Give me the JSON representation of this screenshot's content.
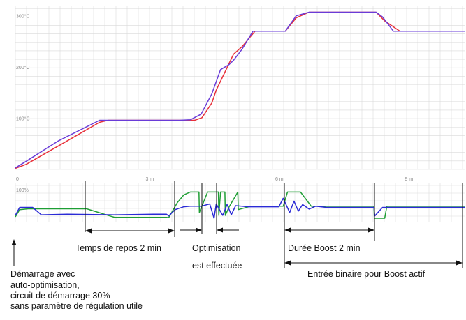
{
  "chart_data": [
    {
      "type": "line",
      "title": "",
      "xlabel": "",
      "ylabel": "",
      "x_unit": "min",
      "xlim": [
        0,
        10.4
      ],
      "ylim": [
        0,
        320
      ],
      "y_tick_labels": [
        {
          "value": 300,
          "label": "300°C"
        },
        {
          "value": 200,
          "label": "200°C"
        },
        {
          "value": 100,
          "label": "100°C"
        }
      ],
      "grid": true,
      "series": [
        {
          "color": "#e8303a",
          "x": [
            0,
            0.25,
            1.0,
            1.95,
            2.15,
            3.2,
            3.8,
            4.15,
            4.32,
            4.55,
            4.65,
            4.85,
            5.05,
            5.25,
            5.55,
            6.25,
            6.5,
            6.8,
            8.35,
            8.55,
            8.9,
            10.4
          ],
          "y": [
            2,
            10,
            46,
            92,
            96,
            96,
            96,
            96,
            101,
            130,
            155,
            190,
            225,
            240,
            270,
            270,
            296,
            307,
            307,
            290,
            270,
            270
          ]
        },
        {
          "color": "#6a3cd8",
          "x": [
            0,
            0.25,
            1.0,
            1.95,
            2.15,
            3.2,
            3.8,
            4.05,
            4.3,
            4.55,
            4.75,
            4.95,
            5.05,
            5.25,
            5.5,
            6.25,
            6.5,
            6.8,
            8.35,
            8.5,
            8.75,
            10.4
          ],
          "y": [
            3,
            16,
            56,
            96,
            96,
            96,
            96,
            97,
            108,
            148,
            195,
            205,
            213,
            235,
            270,
            270,
            300,
            307,
            307,
            298,
            270,
            270
          ]
        }
      ],
      "x_ticks": [
        {
          "value": 0,
          "label": "0"
        },
        {
          "value": 3,
          "label": "3  m"
        },
        {
          "value": 6,
          "label": "6  m"
        },
        {
          "value": 9,
          "label": "9  m"
        }
      ]
    },
    {
      "type": "line",
      "title": "",
      "xlabel": "",
      "ylabel": "",
      "x_unit": "min",
      "xlim": [
        0,
        10.4
      ],
      "ylim": [
        0,
        110
      ],
      "y_tick_labels": [
        {
          "value": 100,
          "label": "100%"
        }
      ],
      "grid": true,
      "series": [
        {
          "color": "#1e9e34",
          "x": [
            0,
            0.1,
            0.3,
            1.6,
            1.65,
            2.3,
            3.5,
            3.55,
            3.75,
            3.9,
            4.05,
            4.25,
            4.26,
            4.45,
            4.7,
            4.71,
            4.75,
            4.85,
            4.86,
            4.95,
            5.15,
            5.16,
            5.45,
            6.2,
            6.3,
            6.6,
            6.85,
            8.3,
            8.31,
            8.55,
            8.6,
            10.4
          ],
          "y": [
            5,
            30,
            33,
            33,
            33,
            3,
            3,
            2,
            55,
            82,
            92,
            92,
            20,
            92,
            92,
            10,
            92,
            92,
            10,
            40,
            92,
            30,
            42,
            42,
            92,
            92,
            42,
            42,
            0,
            0,
            42,
            42
          ]
        },
        {
          "color": "#2b2bd6",
          "x": [
            0,
            0.1,
            0.4,
            0.6,
            1.2,
            1.8,
            2.3,
            3.2,
            3.5,
            3.55,
            3.7,
            3.9,
            4.05,
            4.3,
            4.5,
            4.6,
            4.65,
            4.8,
            4.9,
            5.0,
            5.1,
            5.4,
            6.1,
            6.2,
            6.35,
            6.45,
            6.55,
            6.65,
            6.8,
            6.95,
            7.2,
            8.3,
            8.32,
            8.5,
            10.4
          ],
          "y": [
            10,
            38,
            38,
            12,
            14,
            13,
            12,
            14,
            14,
            8,
            30,
            40,
            42,
            42,
            50,
            0,
            50,
            10,
            48,
            12,
            44,
            40,
            40,
            70,
            20,
            60,
            25,
            48,
            32,
            42,
            38,
            38,
            8,
            38,
            38
          ]
        }
      ],
      "x_ticks": []
    }
  ],
  "annotations": {
    "rest": "Temps de repos 2 min",
    "opt_line1": "Optimisation",
    "opt_line2": "est effectuée",
    "boost_duration": "Durée Boost 2 min",
    "boost_binary": "Entrée binaire pour Boost actif",
    "start_line1": "Démarrage avec",
    "start_line2": "auto-optimisation,",
    "start_line3": "circuit de démarrage 30%",
    "start_line4": "sans paramètre de régulation utile"
  }
}
